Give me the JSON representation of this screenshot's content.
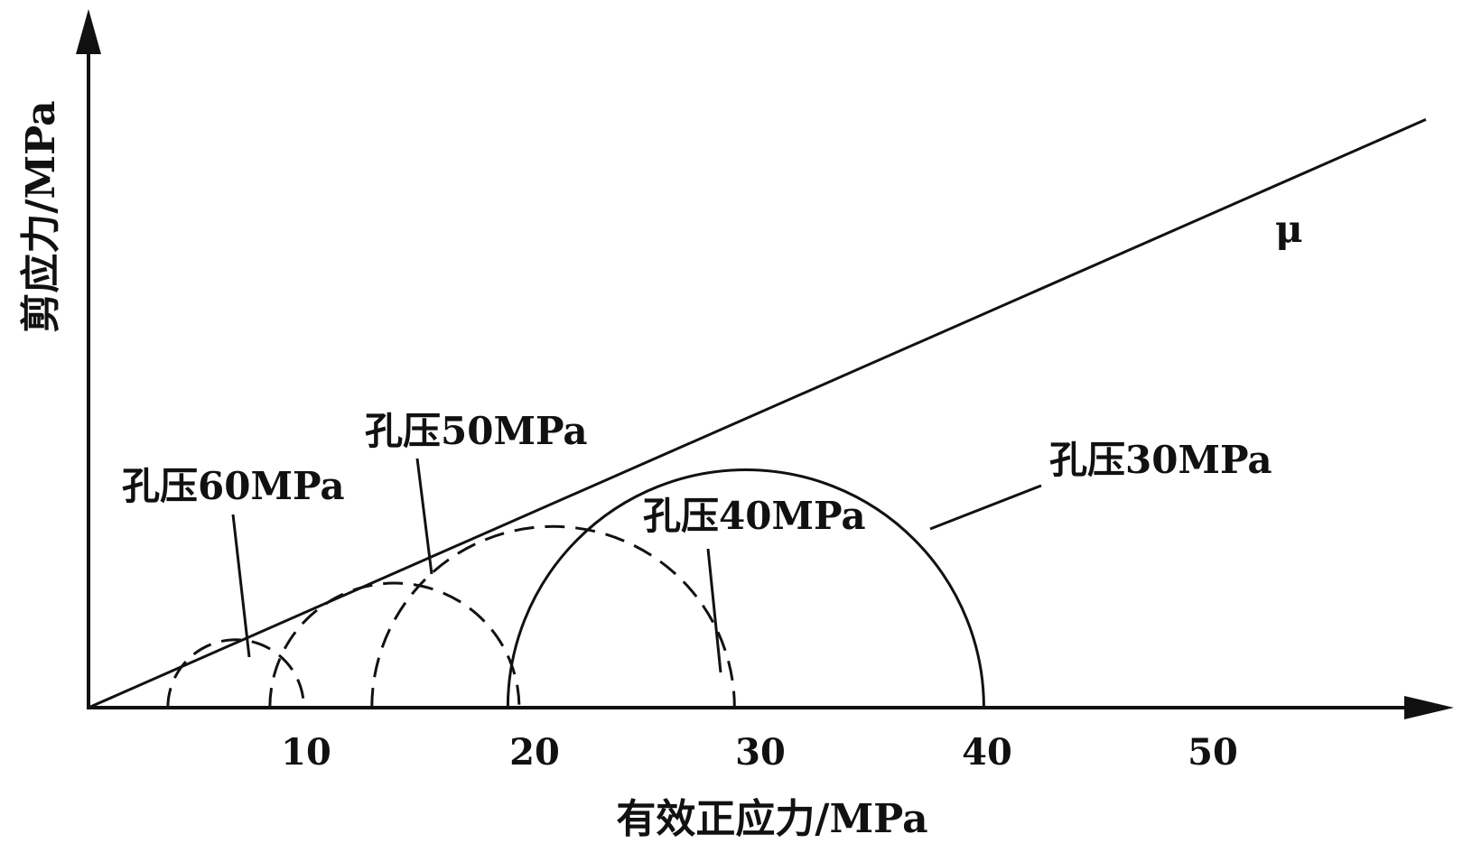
{
  "axes": {
    "x_title": "有效正应力/MPa",
    "y_title": "剪应力/MPa",
    "x_ticks": [
      "10",
      "20",
      "30",
      "40",
      "50"
    ],
    "x_range": [
      0,
      59
    ]
  },
  "failure_line": {
    "label": "μ",
    "slope": 0.44
  },
  "circles": [
    {
      "label": "孔压60MPa",
      "sigma3": 3.5,
      "sigma1": 9.5,
      "style": "dashed"
    },
    {
      "label": "孔压50MPa",
      "sigma3": 8.0,
      "sigma1": 19.0,
      "style": "dashed"
    },
    {
      "label": "孔压40MPa",
      "sigma3": 12.5,
      "sigma1": 28.5,
      "style": "dashed"
    },
    {
      "label": "孔压30MPa",
      "sigma3": 18.5,
      "sigma1": 39.5,
      "style": "solid"
    }
  ],
  "colors": {
    "ink": "#111111",
    "background": "#ffffff"
  }
}
